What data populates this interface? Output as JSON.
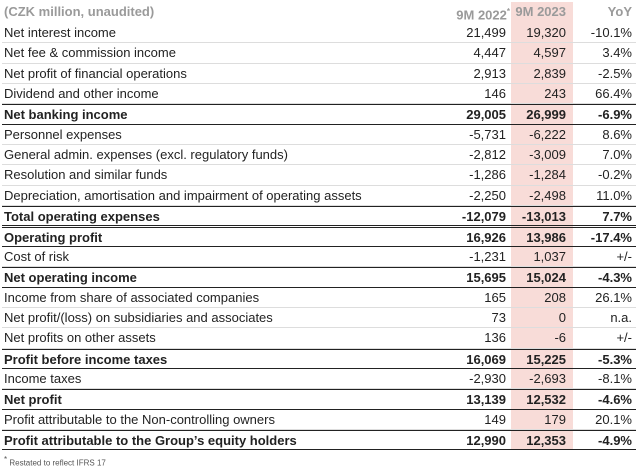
{
  "header": {
    "unit": "(CZK million, unaudited)",
    "col1": "9M 2022",
    "col1_marker": "*",
    "col2": "9M 2023",
    "col3": "YoY"
  },
  "rows": [
    {
      "cells": [
        "Net interest income",
        "21,499",
        "19,320",
        "-10.1%"
      ],
      "bold": false
    },
    {
      "cells": [
        "Net fee & commission income",
        "4,447",
        "4,597",
        "3.4%"
      ],
      "bold": false
    },
    {
      "cells": [
        "Net profit of financial operations",
        "2,913",
        "2,839",
        "-2.5%"
      ],
      "bold": false
    },
    {
      "cells": [
        "Dividend and other income",
        "146",
        "243",
        "66.4%"
      ],
      "bold": false
    },
    {
      "cells": [
        "Net banking income",
        "29,005",
        "26,999",
        "-6.9%"
      ],
      "bold": true
    },
    {
      "cells": [
        "Personnel expenses",
        "-5,731",
        "-6,222",
        "8.6%"
      ],
      "bold": false
    },
    {
      "cells": [
        "General admin. expenses (excl. regulatory funds)",
        "-2,812",
        "-3,009",
        "7.0%"
      ],
      "bold": false
    },
    {
      "cells": [
        "Resolution and similar funds",
        "-1,286",
        "-1,284",
        "-0.2%"
      ],
      "bold": false
    },
    {
      "cells": [
        "Depreciation, amortisation and impairment of operating assets",
        "-2,250",
        "-2,498",
        "11.0%"
      ],
      "bold": false
    },
    {
      "cells": [
        "Total operating expenses",
        "-12,079",
        "-13,013",
        "7.7%"
      ],
      "bold": true
    },
    {
      "cells": [
        "Operating profit",
        "16,926",
        "13,986",
        "-17.4%"
      ],
      "bold": true
    },
    {
      "cells": [
        "Cost of risk",
        "-1,231",
        "1,037",
        "+/-"
      ],
      "bold": false
    },
    {
      "cells": [
        "Net operating income",
        "15,695",
        "15,024",
        "-4.3%"
      ],
      "bold": true
    },
    {
      "cells": [
        "Income from share of associated companies",
        "165",
        "208",
        "26.1%"
      ],
      "bold": false
    },
    {
      "cells": [
        "Net profit/(loss) on subsidiaries and associates",
        "73",
        "0",
        "n.a."
      ],
      "bold": false
    },
    {
      "cells": [
        "Net profits on other assets",
        "136",
        "-6",
        "+/-"
      ],
      "bold": false
    },
    {
      "cells": [
        "Profit before income taxes",
        "16,069",
        "15,225",
        "-5.3%"
      ],
      "bold": true
    },
    {
      "cells": [
        "Income taxes",
        "-2,930",
        "-2,693",
        "-8.1%"
      ],
      "bold": false
    },
    {
      "cells": [
        "Net profit",
        "13,139",
        "12,532",
        "-4.6%"
      ],
      "bold": true
    },
    {
      "cells": [
        "Profit attributable to the Non-controlling owners",
        "149",
        "179",
        "20.1%"
      ],
      "bold": false
    },
    {
      "cells": [
        "Profit attributable to the Group’s equity holders",
        "12,990",
        "12,353",
        "-4.9%"
      ],
      "bold": true
    }
  ],
  "footnote": {
    "marker": "*",
    "text": "Restated to reflect IFRS 17"
  }
}
